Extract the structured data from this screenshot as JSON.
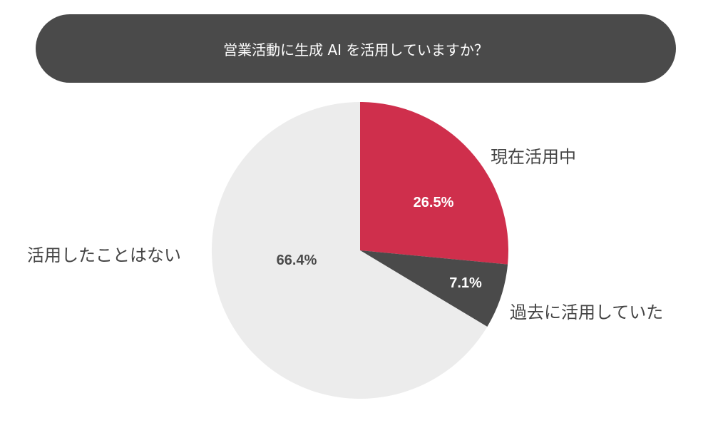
{
  "chart_data": {
    "type": "pie",
    "title": "営業活動に生成 AI を活用していますか？",
    "start_angle": "top",
    "direction": "clockwise",
    "slices": [
      {
        "label": "現在活用中",
        "value": 26.5,
        "value_label": "26.5%",
        "color": "#cf2f4c",
        "text_color": "#ffffff"
      },
      {
        "label": "過去に活用していた",
        "value": 7.1,
        "value_label": "7.1%",
        "color": "#4a4a4a",
        "text_color": "#ffffff"
      },
      {
        "label": "活用したことはない",
        "value": 66.4,
        "value_label": "66.4%",
        "color": "#ececec",
        "text_color": "#4a4a4a"
      }
    ]
  }
}
